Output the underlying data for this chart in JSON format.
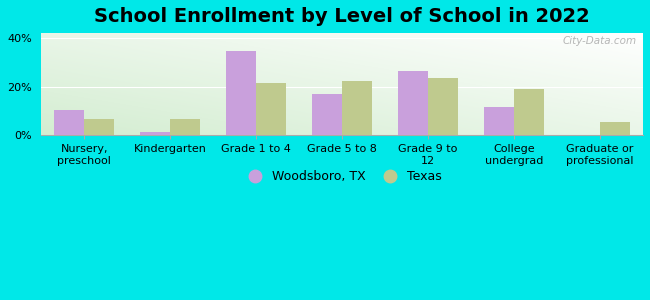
{
  "title": "School Enrollment by Level of School in 2022",
  "categories": [
    "Nursery,\npreschool",
    "Kindergarten",
    "Grade 1 to 4",
    "Grade 5 to 8",
    "Grade 9 to\n12",
    "College\nundergrad",
    "Graduate or\nprofessional"
  ],
  "woodsboro": [
    10.5,
    1.5,
    34.5,
    17.0,
    26.5,
    11.5,
    0.0
  ],
  "texas": [
    6.5,
    6.5,
    21.5,
    22.5,
    23.5,
    19.0,
    5.5
  ],
  "woodsboro_color": "#c9a0dc",
  "texas_color": "#bfca8e",
  "background_outer": "#00e8e8",
  "ylim": [
    0,
    42
  ],
  "yticks": [
    0,
    20,
    40
  ],
  "ytick_labels": [
    "0%",
    "20%",
    "40%"
  ],
  "watermark": "City-Data.com",
  "legend_labels": [
    "Woodsboro, TX",
    "Texas"
  ],
  "title_fontsize": 14,
  "axis_fontsize": 8.0,
  "bar_width": 0.35
}
